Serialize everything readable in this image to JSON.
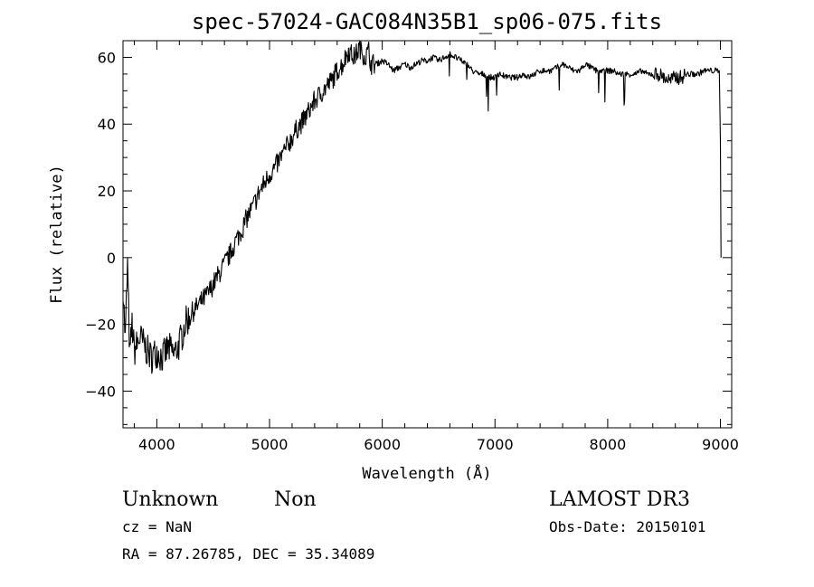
{
  "chart_data": {
    "type": "line",
    "title": "spec-57024-GAC084N35B1_sp06-075.fits",
    "xlabel": "Wavelength (Å)",
    "ylabel": "Flux (relative)",
    "xlim": [
      3700,
      9100
    ],
    "ylim": [
      -51,
      65
    ],
    "xticks": [
      4000,
      5000,
      6000,
      7000,
      8000,
      9000
    ],
    "yticks": [
      -40,
      -20,
      0,
      20,
      40,
      60
    ],
    "grid": false,
    "legend": "none",
    "series": [
      {
        "name": "flux",
        "x": [
          3700,
          3720,
          3740,
          3760,
          3780,
          3800,
          3850,
          3900,
          3950,
          4000,
          4050,
          4100,
          4150,
          4200,
          4250,
          4300,
          4350,
          4400,
          4450,
          4500,
          4550,
          4600,
          4650,
          4700,
          4750,
          4800,
          4850,
          4900,
          4950,
          5000,
          5050,
          5100,
          5150,
          5200,
          5250,
          5300,
          5350,
          5400,
          5450,
          5500,
          5550,
          5600,
          5650,
          5700,
          5750,
          5800,
          5850,
          5880,
          5900,
          5950,
          6000,
          6050,
          6100,
          6150,
          6200,
          6250,
          6300,
          6350,
          6400,
          6450,
          6500,
          6550,
          6600,
          6650,
          6700,
          6750,
          6800,
          6850,
          6900,
          6950,
          7000,
          7050,
          7100,
          7150,
          7200,
          7250,
          7300,
          7350,
          7400,
          7450,
          7500,
          7550,
          7600,
          7650,
          7700,
          7750,
          7800,
          7850,
          7900,
          7950,
          8000,
          8050,
          8100,
          8150,
          8200,
          8250,
          8300,
          8350,
          8400,
          8450,
          8500,
          8550,
          8600,
          8650,
          8700,
          8750,
          8800,
          8850,
          8900,
          8950,
          8990,
          9000,
          9005
        ],
        "y": [
          -8,
          -25,
          -2,
          -30,
          -20,
          -28,
          -24,
          -27,
          -30,
          -28,
          -30,
          -27,
          -29,
          -26,
          -20,
          -17,
          -15,
          -13,
          -11,
          -8,
          -5,
          -2,
          1,
          5,
          8,
          12,
          15,
          19,
          22,
          25,
          27,
          30,
          33,
          36,
          39,
          41,
          44,
          47,
          49,
          51,
          53,
          56,
          58,
          62,
          60,
          63,
          60,
          62,
          58,
          58,
          59,
          58,
          56,
          57,
          58,
          57,
          58,
          59,
          59,
          60,
          59,
          60,
          61,
          60,
          59,
          58,
          56,
          55,
          55,
          54,
          54,
          55,
          54,
          54,
          54,
          55,
          54,
          55,
          56,
          56,
          56,
          57,
          58,
          57,
          56,
          56,
          58,
          57,
          56,
          56,
          56,
          56,
          55,
          55,
          55,
          55,
          56,
          55,
          55,
          55,
          54,
          53,
          54,
          54,
          55,
          55,
          55,
          56,
          56,
          56,
          56,
          35,
          0
        ]
      }
    ]
  },
  "info": {
    "object_class": "Unknown",
    "subclass": "Non",
    "survey": "LAMOST DR3",
    "redshift": "cz = NaN",
    "obs_date": "Obs-Date: 20150101",
    "coords": "RA =  87.26785, DEC =  35.34089"
  }
}
